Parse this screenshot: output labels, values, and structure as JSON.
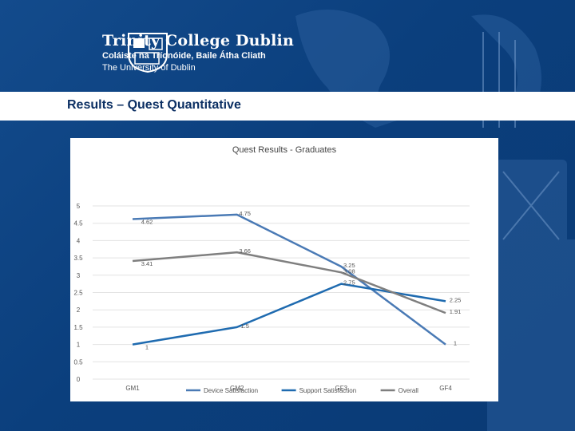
{
  "branding": {
    "title": "Trinity College Dublin",
    "subtitle_irish": "Coláiste na Tríonóide, Baile Átha Cliath",
    "subtitle_en": "The University of Dublin"
  },
  "slide": {
    "heading": "Results  – Quest Quantitative"
  },
  "chart_data": {
    "type": "line",
    "title": "Quest Results - Graduates",
    "categories": [
      "GM1",
      "GM2",
      "GF3",
      "GF4"
    ],
    "ylim": [
      0,
      5
    ],
    "yticks": [
      0,
      0.5,
      1,
      1.5,
      2,
      2.5,
      3,
      3.5,
      4,
      4.5,
      5
    ],
    "series": [
      {
        "name": "Device Satisfaction",
        "color": "#4a7ab5",
        "values": [
          4.62,
          4.75,
          3.25,
          1
        ],
        "labels": [
          "4.62",
          "4.75",
          "3.25",
          "1"
        ]
      },
      {
        "name": "Support Satisfaction",
        "color": "#1f6bb0",
        "values": [
          1,
          1.5,
          2.75,
          2.25
        ],
        "labels": [
          "1",
          "1.5",
          "2.75",
          "2.25"
        ]
      },
      {
        "name": "Overall",
        "color": "#7f7f7f",
        "values": [
          3.41,
          3.66,
          3.08,
          1.91
        ],
        "labels": [
          "3.41",
          "3.66",
          "3.08",
          "1.91"
        ]
      }
    ],
    "legend_position": "bottom"
  }
}
